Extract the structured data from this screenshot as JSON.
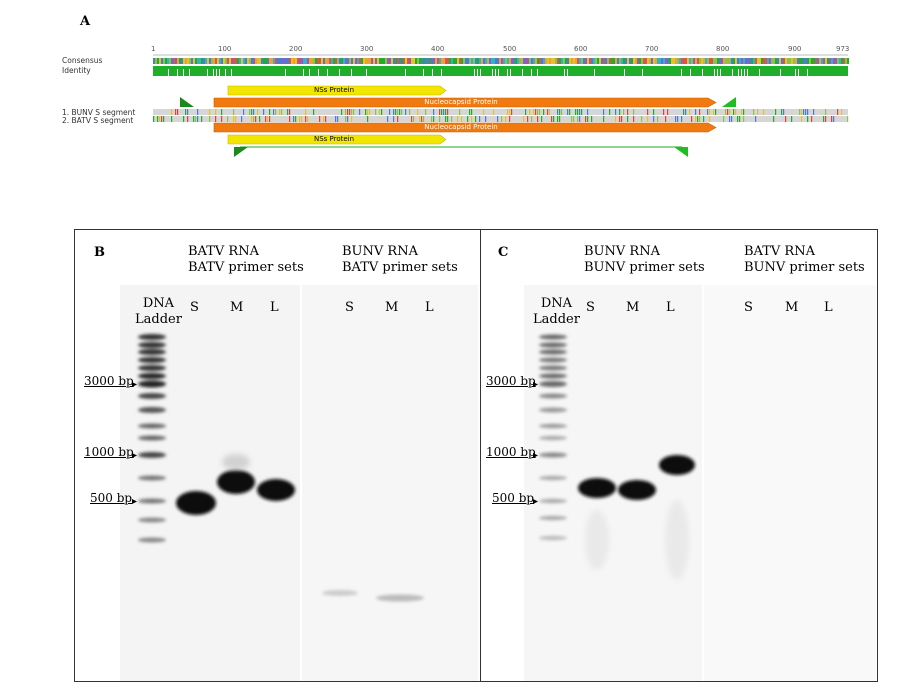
{
  "panel_a": {
    "letter": "A",
    "ruler_ticks": [
      "1",
      "100",
      "200",
      "300",
      "400",
      "500",
      "600",
      "700",
      "800",
      "900",
      "973"
    ],
    "row_labels": {
      "consensus": "Consensus",
      "identity": "Identity"
    },
    "sequences": [
      "1. BUNV S segment",
      "2. BATV S segment"
    ],
    "features": {
      "nss_top": "NSs Protein",
      "nucleocapsid_top": "Nucleocapsid Protein",
      "nucleocapsid_bottom": "Nucleocapsid Protein",
      "nss_bottom": "NSs Protein"
    },
    "colors": {
      "identity": "#1fae2a",
      "nss": "#f2e600",
      "nucleocapsid": "#f07a10",
      "primer": "#1a8a1a"
    }
  },
  "panel_b": {
    "letter": "B",
    "group1": {
      "line1": "BATV RNA",
      "line2": "BATV primer sets"
    },
    "group2": {
      "line1": "BUNV RNA",
      "line2": "BATV primer sets"
    },
    "ladder": {
      "line1": "DNA",
      "line2": "Ladder"
    },
    "lanes_group1": [
      "S",
      "M",
      "L"
    ],
    "lanes_group2": [
      "S",
      "M",
      "L"
    ],
    "markers": [
      "3000 bp",
      "1000 bp",
      "500 bp"
    ]
  },
  "panel_c": {
    "letter": "C",
    "group1": {
      "line1": "BUNV RNA",
      "line2": "BUNV primer sets"
    },
    "group2": {
      "line1": "BATV RNA",
      "line2": "BUNV primer sets"
    },
    "ladder": {
      "line1": "DNA",
      "line2": "Ladder"
    },
    "lanes_group1": [
      "S",
      "M",
      "L"
    ],
    "lanes_group2": [
      "S",
      "M",
      "L"
    ],
    "markers": [
      "3000 bp",
      "1000 bp",
      "500 bp"
    ]
  }
}
